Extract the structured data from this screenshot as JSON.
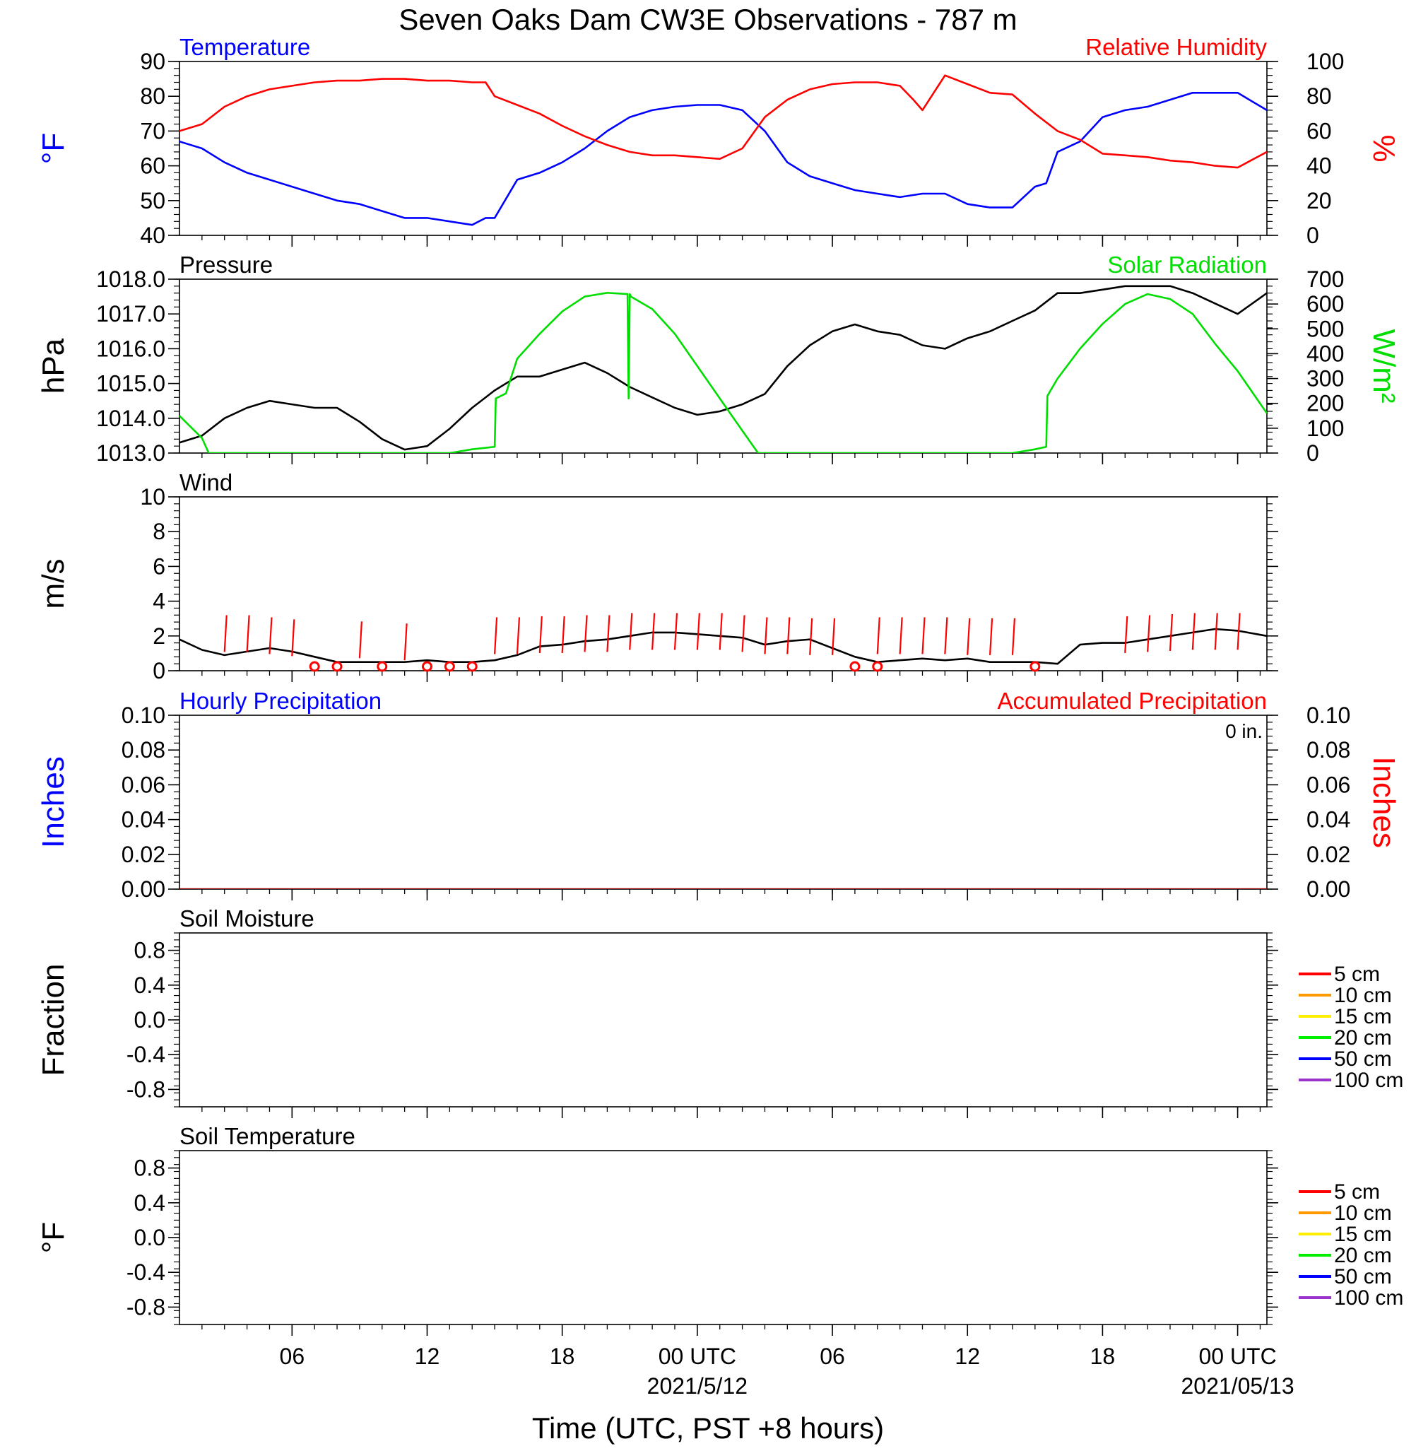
{
  "title": "Seven Oaks Dam CW3E Observations - 787 m",
  "x_axis": {
    "title": "Time (UTC, PST +8 hours)",
    "range_hours": [
      0,
      48.3
    ],
    "ticks": [
      {
        "h": 5,
        "label": "06",
        "date": ""
      },
      {
        "h": 11,
        "label": "12",
        "date": ""
      },
      {
        "h": 17,
        "label": "18",
        "date": ""
      },
      {
        "h": 23,
        "label": "00 UTC",
        "date": "2021/5/12"
      },
      {
        "h": 29,
        "label": "06",
        "date": ""
      },
      {
        "h": 35,
        "label": "12",
        "date": ""
      },
      {
        "h": 41,
        "label": "18",
        "date": ""
      },
      {
        "h": 47,
        "label": "00 UTC",
        "date": "2021/05/13"
      }
    ]
  },
  "chart_data": [
    {
      "type": "line",
      "panel": "temp_rh",
      "left_title": "Temperature",
      "right_title": "Relative Humidity",
      "left_color": "#0000ff",
      "right_color": "#ff0000",
      "ylabel_left": "°F",
      "ylabel_right": "%",
      "ylim_left": [
        40,
        90
      ],
      "ylim_right": [
        0,
        100
      ],
      "yticks_left": [
        "40",
        "50",
        "60",
        "70",
        "80",
        "90"
      ],
      "yticks_right": [
        "0",
        "20",
        "40",
        "60",
        "80",
        "100"
      ],
      "series": [
        {
          "axis": "left",
          "color": "#0000ff",
          "x": [
            0,
            1,
            2,
            3,
            4,
            5,
            6,
            7,
            8,
            9,
            10,
            11,
            12,
            13,
            13.6,
            14,
            15,
            16,
            17,
            18,
            19,
            20,
            21,
            22,
            23,
            24,
            25,
            26,
            27,
            28,
            29,
            30,
            31,
            32,
            33,
            34,
            35,
            36,
            37,
            38,
            38.5,
            39,
            40,
            41,
            42,
            43,
            44,
            45,
            46,
            47,
            48.3
          ],
          "y": [
            67,
            65,
            61,
            58,
            56,
            54,
            52,
            50,
            49,
            47,
            45,
            45,
            44,
            43,
            45,
            45,
            56,
            58,
            61,
            65,
            70,
            74,
            76,
            77,
            77.5,
            77.5,
            76,
            70,
            61,
            57,
            55,
            53,
            52,
            51,
            52,
            52,
            49,
            48,
            48,
            54,
            55,
            64,
            67,
            74,
            76,
            77,
            79,
            81,
            81,
            81,
            76
          ]
        },
        {
          "axis": "right",
          "color": "#ff0000",
          "x": [
            0,
            1,
            2,
            3,
            4,
            5,
            6,
            7,
            8,
            9,
            10,
            11,
            12,
            13,
            13.6,
            14,
            15,
            16,
            17,
            18,
            19,
            20,
            21,
            22,
            23,
            24,
            25,
            26,
            27,
            28,
            29,
            30,
            31,
            32,
            32.6,
            33,
            34,
            35,
            36,
            37,
            38,
            39,
            40,
            41,
            42,
            43,
            44,
            45,
            46,
            47,
            48.3
          ],
          "y": [
            60,
            64,
            74,
            80,
            84,
            86,
            88,
            89,
            89,
            90,
            90,
            89,
            89,
            88,
            88,
            80,
            75,
            70,
            63,
            57,
            52,
            48,
            46,
            46,
            45,
            44,
            50,
            68,
            78,
            84,
            87,
            88,
            88,
            86,
            78,
            72,
            92,
            87,
            82,
            81,
            70,
            60,
            55,
            47,
            46,
            45,
            43,
            42,
            40,
            39,
            48
          ]
        }
      ]
    },
    {
      "type": "line",
      "panel": "pressure_solar",
      "left_title": "Pressure",
      "right_title": "Solar Radiation",
      "left_color": "#000000",
      "right_color": "#00dd00",
      "ylabel_left": "hPa",
      "ylabel_right": "W/m²",
      "ylim_left": [
        1013,
        1018
      ],
      "ylim_right": [
        0,
        700
      ],
      "yticks_left": [
        "1013.0",
        "1014.0",
        "1015.0",
        "1016.0",
        "1017.0",
        "1018.0"
      ],
      "yticks_right": [
        "0",
        "100",
        "200",
        "300",
        "400",
        "500",
        "600",
        "700"
      ],
      "series": [
        {
          "axis": "left",
          "color": "#000000",
          "x": [
            0,
            1,
            2,
            3,
            4,
            5,
            6,
            7,
            8,
            9,
            10,
            11,
            12,
            13,
            14,
            15,
            16,
            17,
            18,
            19,
            20,
            21,
            22,
            23,
            24,
            25,
            26,
            27,
            28,
            29,
            30,
            31,
            32,
            33,
            34,
            35,
            36,
            37,
            38,
            39,
            40,
            41,
            42,
            43,
            44,
            45,
            46,
            47,
            48.3
          ],
          "y": [
            1013.3,
            1013.5,
            1014.0,
            1014.3,
            1014.5,
            1014.4,
            1014.3,
            1014.3,
            1013.9,
            1013.4,
            1013.1,
            1013.2,
            1013.7,
            1014.3,
            1014.8,
            1015.2,
            1015.2,
            1015.4,
            1015.6,
            1015.3,
            1014.9,
            1014.6,
            1014.3,
            1014.1,
            1014.2,
            1014.4,
            1014.7,
            1015.5,
            1016.1,
            1016.5,
            1016.7,
            1016.5,
            1016.4,
            1016.1,
            1016.0,
            1016.3,
            1016.5,
            1016.8,
            1017.1,
            1017.6,
            1017.6,
            1017.7,
            1017.8,
            1017.8,
            1017.8,
            1017.6,
            1017.3,
            1017.0,
            1017.6
          ]
        },
        {
          "axis": "right",
          "color": "#00dd00",
          "x": [
            0,
            1,
            1.3,
            2,
            5,
            8,
            11,
            12,
            13,
            14.0,
            14.05,
            14.5,
            15,
            16,
            17,
            18,
            19,
            19.9,
            19.95,
            20.0,
            20.05,
            21,
            22,
            23,
            24,
            25,
            25.7,
            26,
            30,
            34,
            37,
            38,
            38.5,
            38.55,
            39,
            40,
            41,
            42,
            43,
            44,
            45,
            46,
            47,
            48.3
          ],
          "y": [
            150,
            60,
            0,
            0,
            0,
            0,
            0,
            0,
            15,
            25,
            220,
            240,
            380,
            480,
            570,
            630,
            645,
            640,
            220,
            640,
            630,
            580,
            480,
            350,
            220,
            90,
            0,
            0,
            0,
            0,
            0,
            15,
            25,
            230,
            300,
            420,
            520,
            600,
            640,
            620,
            560,
            440,
            330,
            160
          ]
        }
      ]
    },
    {
      "type": "line",
      "panel": "wind",
      "left_title": "Wind",
      "ylabel_left": "m/s",
      "ylim_left": [
        0,
        10
      ],
      "yticks_left": [
        "0",
        "2",
        "4",
        "6",
        "8",
        "10"
      ],
      "series": [
        {
          "axis": "left",
          "color": "#000000",
          "x": [
            0,
            1,
            2,
            3,
            4,
            5,
            6,
            7,
            8,
            9,
            10,
            11,
            12,
            13,
            14,
            15,
            16,
            17,
            18,
            19,
            20,
            21,
            22,
            23,
            24,
            25,
            26,
            27,
            28,
            29,
            30,
            31,
            32,
            33,
            34,
            35,
            36,
            37,
            38,
            39,
            40,
            41,
            42,
            43,
            44,
            45,
            46,
            47,
            48.3
          ],
          "y": [
            1.8,
            1.2,
            0.9,
            1.1,
            1.3,
            1.1,
            0.8,
            0.5,
            0.5,
            0.5,
            0.5,
            0.6,
            0.5,
            0.5,
            0.6,
            0.9,
            1.4,
            1.5,
            1.7,
            1.8,
            2.0,
            2.2,
            2.2,
            2.1,
            2.0,
            1.9,
            1.5,
            1.7,
            1.8,
            1.3,
            0.8,
            0.5,
            0.6,
            0.7,
            0.6,
            0.7,
            0.5,
            0.5,
            0.5,
            0.4,
            1.5,
            1.6,
            1.6,
            1.8,
            2.0,
            2.2,
            2.4,
            2.3,
            2.0
          ]
        }
      ],
      "barbs": [
        {
          "x": 2,
          "speed": 1.8
        },
        {
          "x": 3,
          "speed": 1.8
        },
        {
          "x": 4,
          "speed": 1.6
        },
        {
          "x": 5,
          "speed": 1.4
        },
        {
          "x": 8,
          "speed": 1.2
        },
        {
          "x": 10,
          "speed": 1.0
        },
        {
          "x": 14,
          "speed": 1.6
        },
        {
          "x": 15,
          "speed": 1.6
        },
        {
          "x": 16,
          "speed": 1.7
        },
        {
          "x": 17,
          "speed": 1.7
        },
        {
          "x": 18,
          "speed": 1.8
        },
        {
          "x": 19,
          "speed": 1.8
        },
        {
          "x": 20,
          "speed": 2.0
        },
        {
          "x": 21,
          "speed": 2.0
        },
        {
          "x": 22,
          "speed": 2.0
        },
        {
          "x": 23,
          "speed": 2.0
        },
        {
          "x": 24,
          "speed": 2.0
        },
        {
          "x": 25,
          "speed": 1.8
        },
        {
          "x": 26,
          "speed": 1.6
        },
        {
          "x": 27,
          "speed": 1.6
        },
        {
          "x": 28,
          "speed": 1.5
        },
        {
          "x": 29,
          "speed": 1.5
        },
        {
          "x": 31,
          "speed": 1.6
        },
        {
          "x": 32,
          "speed": 1.6
        },
        {
          "x": 33,
          "speed": 1.6
        },
        {
          "x": 34,
          "speed": 1.6
        },
        {
          "x": 35,
          "speed": 1.5
        },
        {
          "x": 36,
          "speed": 1.5
        },
        {
          "x": 37,
          "speed": 1.5
        },
        {
          "x": 42,
          "speed": 1.7
        },
        {
          "x": 43,
          "speed": 1.8
        },
        {
          "x": 44,
          "speed": 1.9
        },
        {
          "x": 45,
          "speed": 2.0
        },
        {
          "x": 46,
          "speed": 2.0
        },
        {
          "x": 47,
          "speed": 2.0
        }
      ],
      "calm_markers": [
        6,
        7,
        9,
        11,
        12,
        13,
        30,
        31,
        38
      ]
    },
    {
      "type": "line",
      "panel": "precip",
      "left_title": "Hourly Precipitation",
      "right_title": "Accumulated Precipitation",
      "accum_label": "0 in.",
      "left_color": "#0000ff",
      "right_color": "#ff0000",
      "ylabel_left": "Inches",
      "ylabel_right": "Inches",
      "ylim_left": [
        0,
        0.1
      ],
      "ylim_right": [
        0,
        0.1
      ],
      "yticks_left": [
        "0.00",
        "0.02",
        "0.04",
        "0.06",
        "0.08",
        "0.10"
      ],
      "yticks_right": [
        "0.00",
        "0.02",
        "0.04",
        "0.06",
        "0.08",
        "0.10"
      ],
      "series": [
        {
          "axis": "left",
          "color": "#990000",
          "x": [
            0,
            48.3
          ],
          "y": [
            0,
            0
          ]
        }
      ]
    },
    {
      "type": "line",
      "panel": "soil_moisture",
      "left_title": "Soil Moisture",
      "ylabel_left": "Fraction",
      "ylim_left": [
        -1,
        1
      ],
      "yticks_left": [
        "-0.8",
        "-0.4",
        "0.0",
        "0.4",
        "0.8"
      ],
      "legend": [
        {
          "label": "5 cm",
          "color": "#ff0000"
        },
        {
          "label": "10 cm",
          "color": "#ff9900"
        },
        {
          "label": "15 cm",
          "color": "#ffee00"
        },
        {
          "label": "20 cm",
          "color": "#00ee00"
        },
        {
          "label": "50 cm",
          "color": "#0000ff"
        },
        {
          "label": "100 cm",
          "color": "#9933cc"
        }
      ],
      "series": []
    },
    {
      "type": "line",
      "panel": "soil_temp",
      "left_title": "Soil Temperature",
      "ylabel_left": "°F",
      "ylim_left": [
        -1,
        1
      ],
      "yticks_left": [
        "-0.8",
        "-0.4",
        "0.0",
        "0.4",
        "0.8"
      ],
      "legend": [
        {
          "label": "5 cm",
          "color": "#ff0000"
        },
        {
          "label": "10 cm",
          "color": "#ff9900"
        },
        {
          "label": "15 cm",
          "color": "#ffee00"
        },
        {
          "label": "20 cm",
          "color": "#00ee00"
        },
        {
          "label": "50 cm",
          "color": "#0000ff"
        },
        {
          "label": "100 cm",
          "color": "#9933cc"
        }
      ],
      "series": []
    }
  ]
}
